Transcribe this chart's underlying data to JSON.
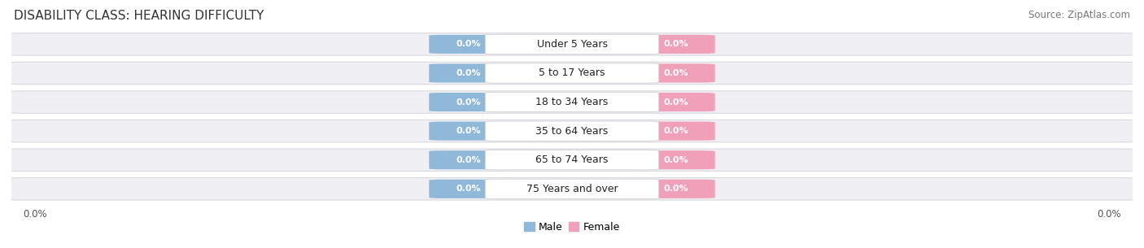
{
  "title": "DISABILITY CLASS: HEARING DIFFICULTY",
  "source": "Source: ZipAtlas.com",
  "categories": [
    "Under 5 Years",
    "5 to 17 Years",
    "18 to 34 Years",
    "35 to 64 Years",
    "65 to 74 Years",
    "75 Years and over"
  ],
  "male_values": [
    0.0,
    0.0,
    0.0,
    0.0,
    0.0,
    0.0
  ],
  "female_values": [
    0.0,
    0.0,
    0.0,
    0.0,
    0.0,
    0.0
  ],
  "male_color": "#90b8d8",
  "female_color": "#f0a0b8",
  "male_label": "Male",
  "female_label": "Female",
  "row_bg_color": "#f0f0f4",
  "row_edge_color": "#d8d8e0",
  "title_fontsize": 11,
  "source_fontsize": 8.5,
  "value_fontsize": 8,
  "category_fontsize": 9,
  "legend_fontsize": 9,
  "axis_label_fontsize": 8.5,
  "axis_value_left": "0.0%",
  "axis_value_right": "0.0%"
}
